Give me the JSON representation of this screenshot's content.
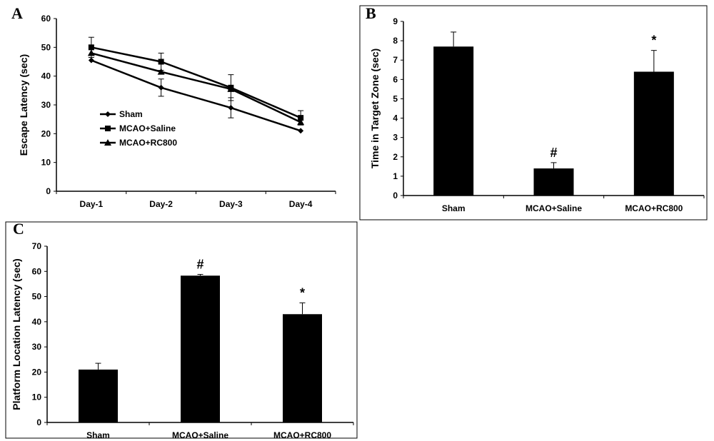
{
  "chart_data": [
    {
      "panel": "A",
      "type": "line",
      "categories": [
        "Day-1",
        "Day-2",
        "Day-3",
        "Day-4"
      ],
      "ylabel": "Escape Latency (sec)",
      "ylim": [
        0,
        60
      ],
      "yticks": [
        0,
        10,
        20,
        30,
        40,
        50,
        60
      ],
      "legend_position": "center-left",
      "series": [
        {
          "name": "Sham",
          "marker": "diamond",
          "values": [
            45.5,
            36,
            29,
            21
          ],
          "err": [
            0,
            3,
            3.5,
            0
          ]
        },
        {
          "name": "MCAO+Saline",
          "marker": "square",
          "values": [
            50,
            45,
            36,
            25.5
          ],
          "err": [
            3.5,
            3,
            4.5,
            2.5
          ]
        },
        {
          "name": "MCAO+RC800",
          "marker": "triangle",
          "values": [
            48,
            41.5,
            35.5,
            24
          ],
          "err": [
            0,
            0,
            0,
            0
          ]
        }
      ]
    },
    {
      "panel": "B",
      "type": "bar",
      "categories": [
        "Sham",
        "MCAO+Saline",
        "MCAO+RC800"
      ],
      "values": [
        7.7,
        1.4,
        6.4
      ],
      "err": [
        0.75,
        0.3,
        1.1
      ],
      "annotations": [
        "",
        "#",
        "*"
      ],
      "ylabel": "Time in Target Zone (sec)",
      "ylim": [
        0,
        9
      ],
      "yticks": [
        0,
        1,
        2,
        3,
        4,
        5,
        6,
        7,
        8,
        9
      ]
    },
    {
      "panel": "C",
      "type": "bar",
      "categories": [
        "Sham",
        "MCAO+Saline",
        "MCAO+RC800"
      ],
      "values": [
        21,
        58.3,
        43
      ],
      "err": [
        2.5,
        0.5,
        4.5
      ],
      "annotations": [
        "",
        "#",
        "*"
      ],
      "ylabel": "Platform Location Latency (sec)",
      "ylim": [
        0,
        70
      ],
      "yticks": [
        0,
        10,
        20,
        30,
        40,
        50,
        60,
        70
      ]
    }
  ]
}
